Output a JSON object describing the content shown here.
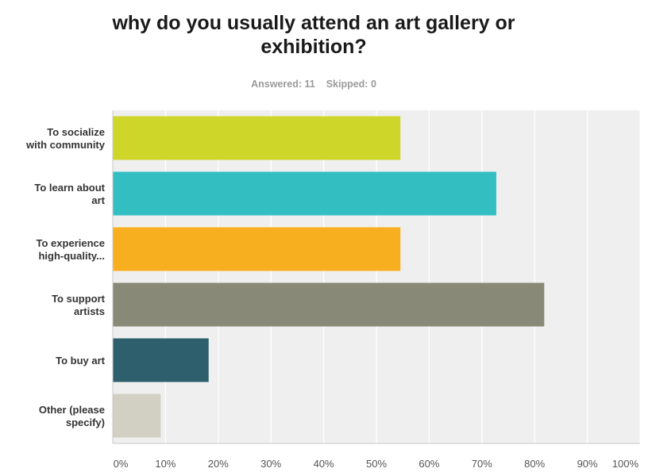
{
  "header": {
    "title": "why do you usually attend an art gallery or\nexhibition?",
    "answered": "Answered: 11",
    "skipped": "Skipped: 0"
  },
  "chart_data": {
    "type": "bar",
    "orientation": "horizontal",
    "categories": [
      [
        "To socialize",
        "with community"
      ],
      [
        "To learn about",
        "art"
      ],
      [
        "To experience",
        "high-quality..."
      ],
      [
        "To support",
        "artists"
      ],
      [
        "To buy art"
      ],
      [
        "Other (please",
        "specify)"
      ]
    ],
    "values": [
      54.55,
      72.73,
      54.55,
      81.82,
      18.18,
      9.09
    ],
    "colors": [
      "#cfd62a",
      "#33bec2",
      "#f8af1f",
      "#898978",
      "#2d5f6c",
      "#d2d0c3"
    ],
    "xlim": [
      0,
      100
    ],
    "ticks": [
      "0%",
      "10%",
      "20%",
      "30%",
      "40%",
      "50%",
      "60%",
      "70%",
      "80%",
      "90%",
      "100%"
    ],
    "grid": true,
    "plot_background": "#efefef"
  }
}
